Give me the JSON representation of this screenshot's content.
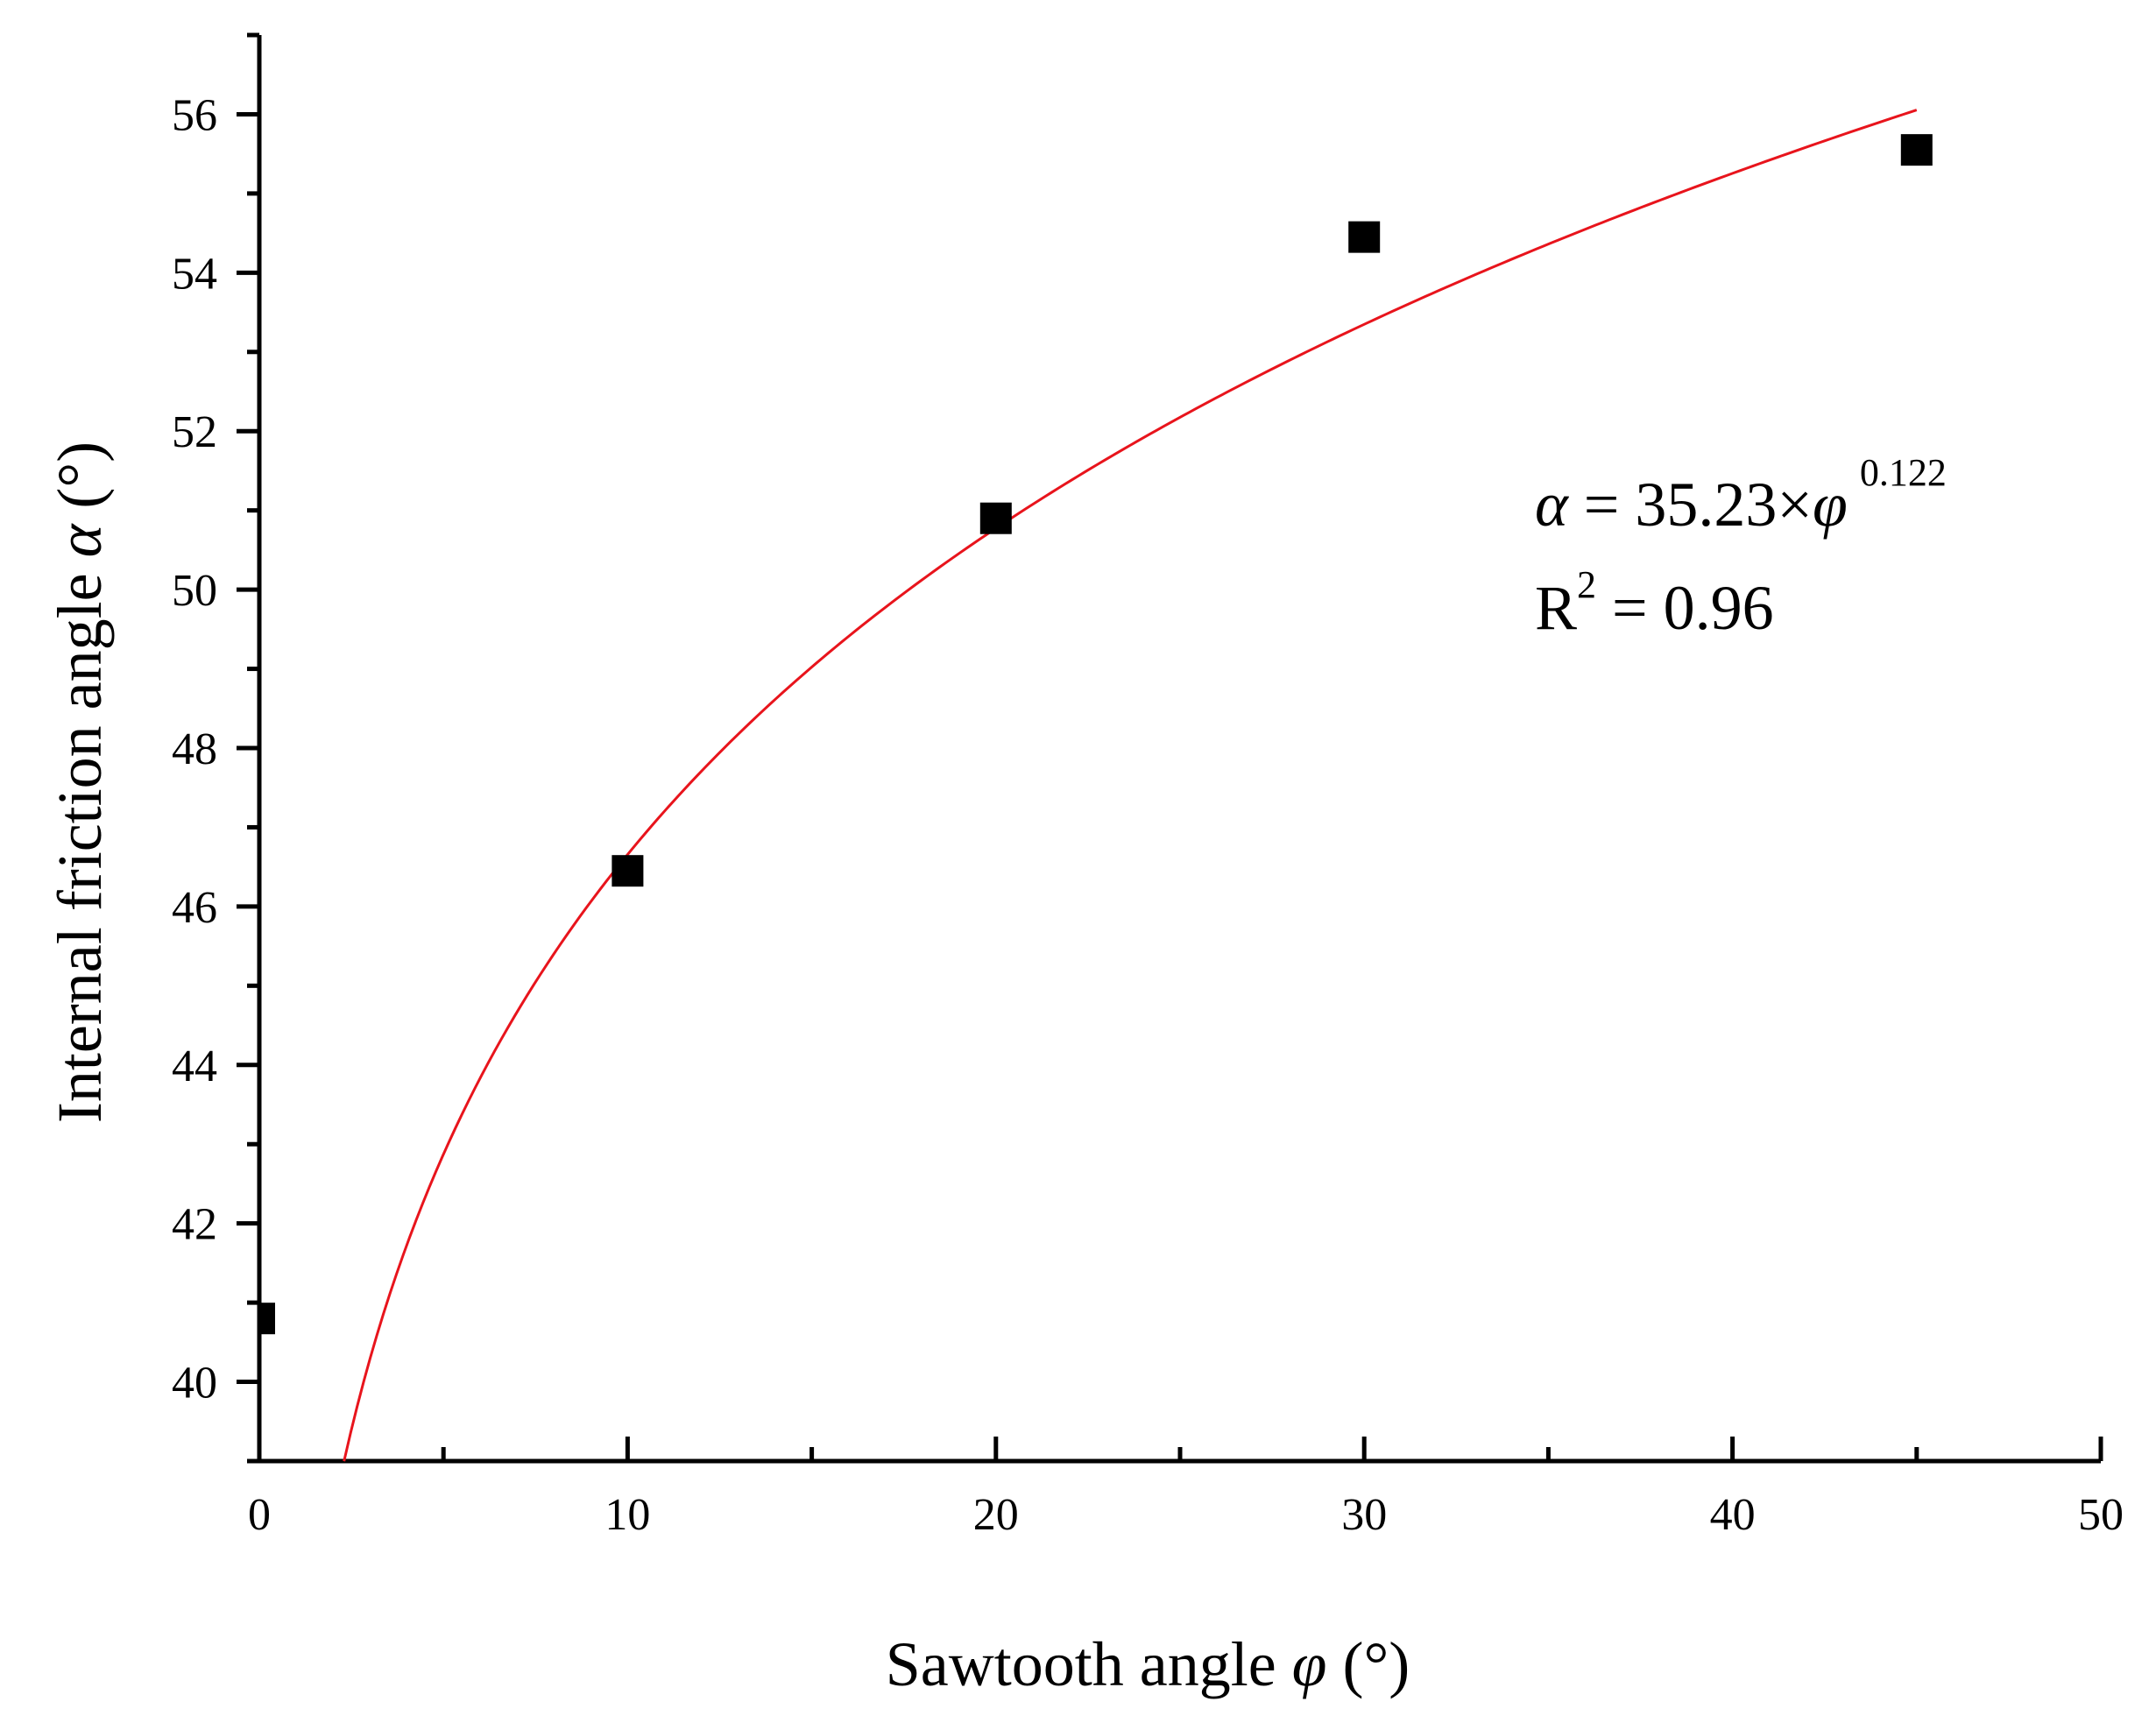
{
  "chart_data": {
    "type": "scatter",
    "xlabel": "Sawtooth angle",
    "xlabel_symbol": "φ",
    "xlabel_unit": "(°)",
    "ylabel": "Internal friction angle",
    "ylabel_symbol": "α",
    "ylabel_unit": "(°)",
    "xlim": [
      0,
      50
    ],
    "ylim": [
      39,
      57
    ],
    "x_major_ticks": [
      0,
      10,
      20,
      30,
      40,
      50
    ],
    "x_tick_labels": [
      "0",
      "10",
      "20",
      "30",
      "40",
      "50"
    ],
    "y_major_ticks": [
      40,
      42,
      44,
      46,
      48,
      50,
      52,
      54,
      56
    ],
    "y_tick_labels": [
      "40",
      "42",
      "44",
      "46",
      "48",
      "50",
      "52",
      "54",
      "56"
    ],
    "grid": false,
    "series": [
      {
        "kind": "points",
        "marker": "square",
        "color": "#000000",
        "x": [
          0,
          10,
          20,
          30,
          45
        ],
        "y": [
          40.8,
          46.45,
          50.9,
          54.45,
          55.55
        ]
      },
      {
        "kind": "fit",
        "model": "power",
        "coefficient": 35.23,
        "exponent": 0.122,
        "x_range": [
          2.3,
          45
        ],
        "color": "#e8141c"
      }
    ],
    "annotation": {
      "equation_lhs": "α",
      "equation_mid": " = 35.23×",
      "equation_var": "φ",
      "equation_exp": "0.122",
      "r2_base": "R",
      "r2_exp": "2",
      "r2_value": " = 0.96"
    }
  }
}
